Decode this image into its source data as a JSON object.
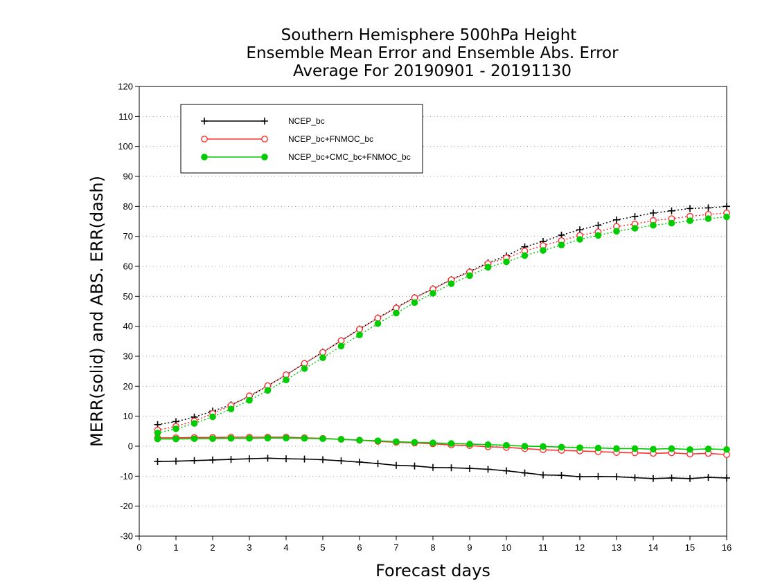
{
  "chart_data": {
    "type": "line",
    "title": [
      "Southern Hemisphere 500hPa Height",
      "Ensemble Mean Error and Ensemble Abs. Error",
      "Average For 20190901 - 20191130"
    ],
    "xlabel": "Forecast days",
    "ylabel": "MERR(solid) and ABS. ERR(dash)",
    "xlim": [
      0,
      16
    ],
    "ylim": [
      -30,
      120
    ],
    "xticks": [
      0,
      1,
      2,
      3,
      4,
      5,
      6,
      7,
      8,
      9,
      10,
      11,
      12,
      13,
      14,
      15,
      16
    ],
    "yticks": [
      -30,
      -20,
      -10,
      0,
      10,
      20,
      30,
      40,
      50,
      60,
      70,
      80,
      90,
      100,
      110,
      120
    ],
    "grid": "horizontal dotted",
    "legend_position": "top-left",
    "x": [
      0.5,
      1,
      1.5,
      2,
      2.5,
      3,
      3.5,
      4,
      4.5,
      5,
      5.5,
      6,
      6.5,
      7,
      7.5,
      8,
      8.5,
      9,
      9.5,
      10,
      10.5,
      11,
      11.5,
      12,
      12.5,
      13,
      13.5,
      14,
      14.5,
      15,
      15.5,
      16
    ],
    "series": [
      {
        "name": "NCEP_bc",
        "color": "#000000",
        "marker": "plus",
        "merr": [
          -5.1,
          -5.0,
          -4.8,
          -4.6,
          -4.4,
          -4.2,
          -4.0,
          -4.2,
          -4.3,
          -4.5,
          -4.9,
          -5.3,
          -5.8,
          -6.4,
          -6.6,
          -7.1,
          -7.2,
          -7.4,
          -7.7,
          -8.2,
          -8.9,
          -9.6,
          -9.7,
          -10.2,
          -10.1,
          -10.2,
          -10.5,
          -10.8,
          -10.6,
          -10.8,
          -10.4,
          -10.6
        ],
        "abserr": [
          7.2,
          8.2,
          9.7,
          11.7,
          13.8,
          16.6,
          20.1,
          23.8,
          27.6,
          31.4,
          35.2,
          39.1,
          42.8,
          46.3,
          49.6,
          52.5,
          55.6,
          58.3,
          61.2,
          63.5,
          66.5,
          68.3,
          70.4,
          72.2,
          73.7,
          75.5,
          76.6,
          77.8,
          78.5,
          79.3,
          79.5,
          80.0
        ]
      },
      {
        "name": "NCEP_bc+FNMOC_bc",
        "color": "#ff3030",
        "marker": "open-circle",
        "merr": [
          2.8,
          2.8,
          2.9,
          2.9,
          3.0,
          3.0,
          3.0,
          3.0,
          2.8,
          2.6,
          2.3,
          2.0,
          1.6,
          1.3,
          1.1,
          0.8,
          0.4,
          0.2,
          -0.2,
          -0.4,
          -0.8,
          -1.2,
          -1.4,
          -1.6,
          -1.8,
          -2.1,
          -2.2,
          -2.4,
          -2.2,
          -2.6,
          -2.4,
          -2.8
        ],
        "abserr": [
          5.4,
          6.6,
          8.4,
          10.9,
          13.6,
          16.8,
          20.2,
          23.8,
          27.6,
          31.3,
          35.2,
          39.0,
          42.7,
          46.1,
          49.5,
          52.4,
          55.5,
          58.1,
          60.9,
          62.8,
          65.1,
          66.9,
          68.6,
          70.3,
          71.5,
          73.3,
          74.1,
          75.3,
          75.9,
          76.7,
          77.3,
          77.8
        ]
      },
      {
        "name": "NCEP_bc+CMC_bc+FNMOC_bc",
        "color": "#00cc00",
        "marker": "filled-circle",
        "merr": [
          2.4,
          2.4,
          2.5,
          2.5,
          2.6,
          2.6,
          2.7,
          2.7,
          2.6,
          2.5,
          2.3,
          2.0,
          1.8,
          1.5,
          1.3,
          1.1,
          0.9,
          0.7,
          0.5,
          0.3,
          0.0,
          -0.1,
          -0.3,
          -0.5,
          -0.6,
          -0.8,
          -0.8,
          -1.0,
          -0.8,
          -1.1,
          -0.9,
          -1.1
        ],
        "abserr": [
          4.4,
          5.8,
          7.6,
          9.8,
          12.4,
          15.3,
          18.6,
          22.1,
          25.9,
          29.5,
          33.4,
          37.1,
          40.9,
          44.4,
          47.9,
          51.0,
          54.2,
          56.9,
          59.7,
          61.5,
          63.6,
          65.3,
          67.1,
          69.0,
          70.3,
          71.7,
          72.7,
          73.7,
          74.4,
          75.2,
          75.9,
          76.5
        ]
      }
    ]
  }
}
